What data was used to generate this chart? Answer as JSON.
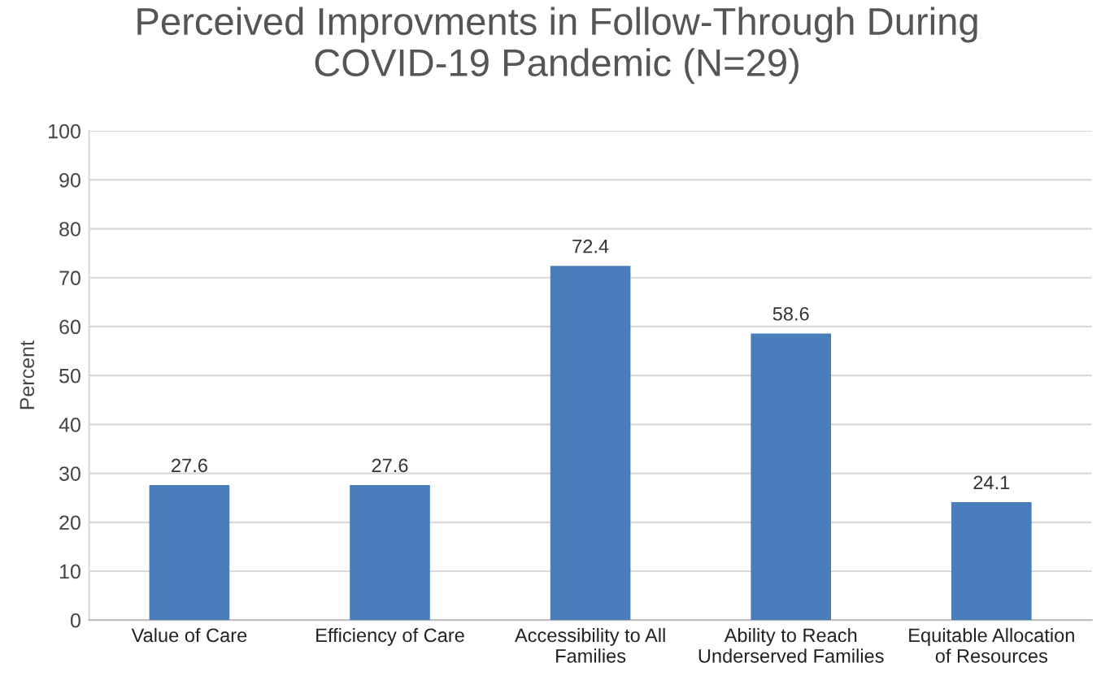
{
  "chart_data": {
    "type": "bar",
    "title": "Perceived Improvments in Follow-Through During\nCOVID-19 Pandemic (N=29)",
    "ylabel": "Percent",
    "categories": [
      "Value of Care",
      "Efficiency of Care",
      "Accessibility to All\nFamilies",
      "Ability to Reach\nUnderserved Families",
      "Equitable Allocation\nof Resources"
    ],
    "values": [
      27.6,
      27.6,
      72.4,
      58.6,
      24.1
    ],
    "color": "#4a7ebb",
    "ylim": [
      0,
      100
    ],
    "yticks": [
      0,
      10,
      20,
      30,
      40,
      50,
      60,
      70,
      80,
      90,
      100
    ],
    "grid": "y",
    "data_labels": true,
    "legend": false
  }
}
